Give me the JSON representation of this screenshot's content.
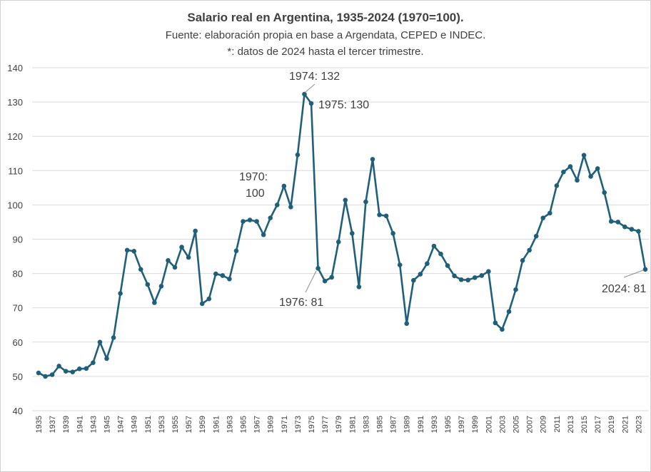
{
  "chart_data": {
    "type": "line",
    "title": "Salario real en Argentina, 1935-2024 (1970=100).",
    "subtitle": "Fuente: elaboración propia en base a Argendata, CEPED e INDEC.",
    "note": "*: datos de 2024 hasta el tercer trimestre.",
    "xlabel": "",
    "ylabel": "",
    "ylim": [
      40,
      140
    ],
    "yticks": [
      40,
      50,
      60,
      70,
      80,
      90,
      100,
      110,
      120,
      130,
      140
    ],
    "grid": true,
    "color": "#1f5f7a",
    "x": [
      1935,
      1936,
      1937,
      1938,
      1939,
      1940,
      1941,
      1942,
      1943,
      1944,
      1945,
      1946,
      1947,
      1948,
      1949,
      1950,
      1951,
      1952,
      1953,
      1954,
      1955,
      1956,
      1957,
      1958,
      1959,
      1960,
      1961,
      1962,
      1963,
      1964,
      1965,
      1966,
      1967,
      1968,
      1969,
      1970,
      1971,
      1972,
      1973,
      1974,
      1975,
      1976,
      1977,
      1978,
      1979,
      1980,
      1981,
      1982,
      1983,
      1984,
      1985,
      1986,
      1987,
      1988,
      1989,
      1990,
      1991,
      1992,
      1993,
      1994,
      1995,
      1996,
      1997,
      1998,
      1999,
      2000,
      2001,
      2002,
      2003,
      2004,
      2005,
      2006,
      2007,
      2008,
      2009,
      2010,
      2011,
      2012,
      2013,
      2014,
      2015,
      2016,
      2017,
      2018,
      2019,
      2020,
      2021,
      2022,
      2023,
      2024
    ],
    "y": [
      51,
      50,
      50.5,
      53,
      51.5,
      51.3,
      52.2,
      52.3,
      54,
      60,
      55.2,
      61.3,
      74.2,
      86.8,
      86.5,
      81.2,
      76.8,
      71.5,
      76.3,
      83.8,
      81.8,
      87.7,
      84.7,
      92.4,
      71.2,
      72.6,
      79.9,
      79.4,
      78.4,
      86.6,
      95.2,
      95.6,
      95.2,
      91.3,
      96.2,
      100,
      105.5,
      99.4,
      114.6,
      132.3,
      129.6,
      81.5,
      77.8,
      78.9,
      89.2,
      101.4,
      91.7,
      76.1,
      100.9,
      113.3,
      97.1,
      96.8,
      91.7,
      82.5,
      65.4,
      78,
      79.8,
      82.9,
      88,
      85.7,
      82.3,
      79.3,
      78.2,
      78.1,
      78.8,
      79.4,
      80.6,
      65.6,
      63.7,
      68.9,
      75.3,
      83.8,
      86.8,
      90.9,
      96.2,
      97.6,
      105.6,
      109.6,
      111.2,
      107.2,
      114.5,
      108.3,
      110.6,
      103.6,
      95.2,
      95,
      93.6,
      92.9,
      92.3,
      81.2
    ],
    "xtick_labels": [
      "1935",
      "1937",
      "1939",
      "1941",
      "1943",
      "1945",
      "1947",
      "1949",
      "1951",
      "1953",
      "1955",
      "1957",
      "1959",
      "1961",
      "1963",
      "1965",
      "1967",
      "1969",
      "1971",
      "1973",
      "1975",
      "1977",
      "1979",
      "1981",
      "1983",
      "1985",
      "1987",
      "1989",
      "1991",
      "1993",
      "1995",
      "1997",
      "1999",
      "2001",
      "2003",
      "2005",
      "2007",
      "2009",
      "2011",
      "2013",
      "2015",
      "2017",
      "2019",
      "2021",
      "2023"
    ],
    "annotations": [
      {
        "label": "1974:  132",
        "year": 1974,
        "value": 132
      },
      {
        "label": "1975:  130",
        "year": 1975,
        "value": 130
      },
      {
        "label_line1": "1970:",
        "label_line2": "100",
        "year": 1970,
        "value": 100
      },
      {
        "label": "1976: 81",
        "year": 1976,
        "value": 81
      },
      {
        "label": "2024: 81",
        "year": 2024,
        "value": 81
      }
    ]
  }
}
